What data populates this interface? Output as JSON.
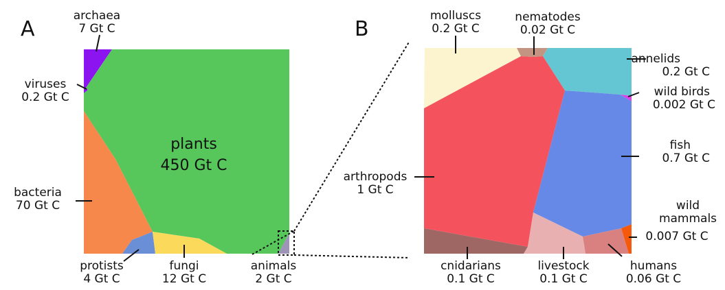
{
  "panels": {
    "a": {
      "letter": "A",
      "regions": [
        {
          "id": "plants",
          "name": "plants",
          "value": "450 Gt C",
          "color": "#57c75b"
        },
        {
          "id": "bacteria",
          "name": "bacteria",
          "value": "70 Gt C",
          "color": "#f5884a"
        },
        {
          "id": "fungi",
          "name": "fungi",
          "value": "12 Gt C",
          "color": "#fbd95a"
        },
        {
          "id": "archaea",
          "name": "archaea",
          "value": "7 Gt C",
          "color": "#8b14f0"
        },
        {
          "id": "protists",
          "name": "protists",
          "value": "4 Gt C",
          "color": "#6a8fd6"
        },
        {
          "id": "animals",
          "name": "animals",
          "value": "2 Gt C",
          "color": "#9d94b8"
        },
        {
          "id": "viruses",
          "name": "viruses",
          "value": "0.2 Gt C",
          "color": "#8b14f0"
        }
      ]
    },
    "b": {
      "letter": "B",
      "regions": [
        {
          "id": "arthropods",
          "name": "arthropods",
          "value": "1 Gt C",
          "color": "#f4525d"
        },
        {
          "id": "fish",
          "name": "fish",
          "value": "0.7 Gt C",
          "color": "#6688e6"
        },
        {
          "id": "molluscs",
          "name": "molluscs",
          "value": "0.2 Gt C",
          "color": "#fcf3cf"
        },
        {
          "id": "annelids",
          "name": "annelids",
          "value": "0.2 Gt C",
          "color": "#64c6d2"
        },
        {
          "id": "cnidarians",
          "name": "cnidarians",
          "value": "0.1 Gt C",
          "color": "#9e6763"
        },
        {
          "id": "livestock",
          "name": "livestock",
          "value": "0.1 Gt C",
          "color": "#e8b0b0"
        },
        {
          "id": "humans",
          "name": "humans",
          "value": "0.06 Gt C",
          "color": "#d98080"
        },
        {
          "id": "nematodes",
          "name": "nematodes",
          "value": "0.02 Gt C",
          "color": "#c49482"
        },
        {
          "id": "wild_mammals",
          "name": "wild\nmammals",
          "value": "0.007 Gt C",
          "color": "#f55a0c"
        },
        {
          "id": "wild_birds",
          "name": "wild birds",
          "value": "0.002 Gt C",
          "color": "#e040e8"
        }
      ]
    }
  }
}
